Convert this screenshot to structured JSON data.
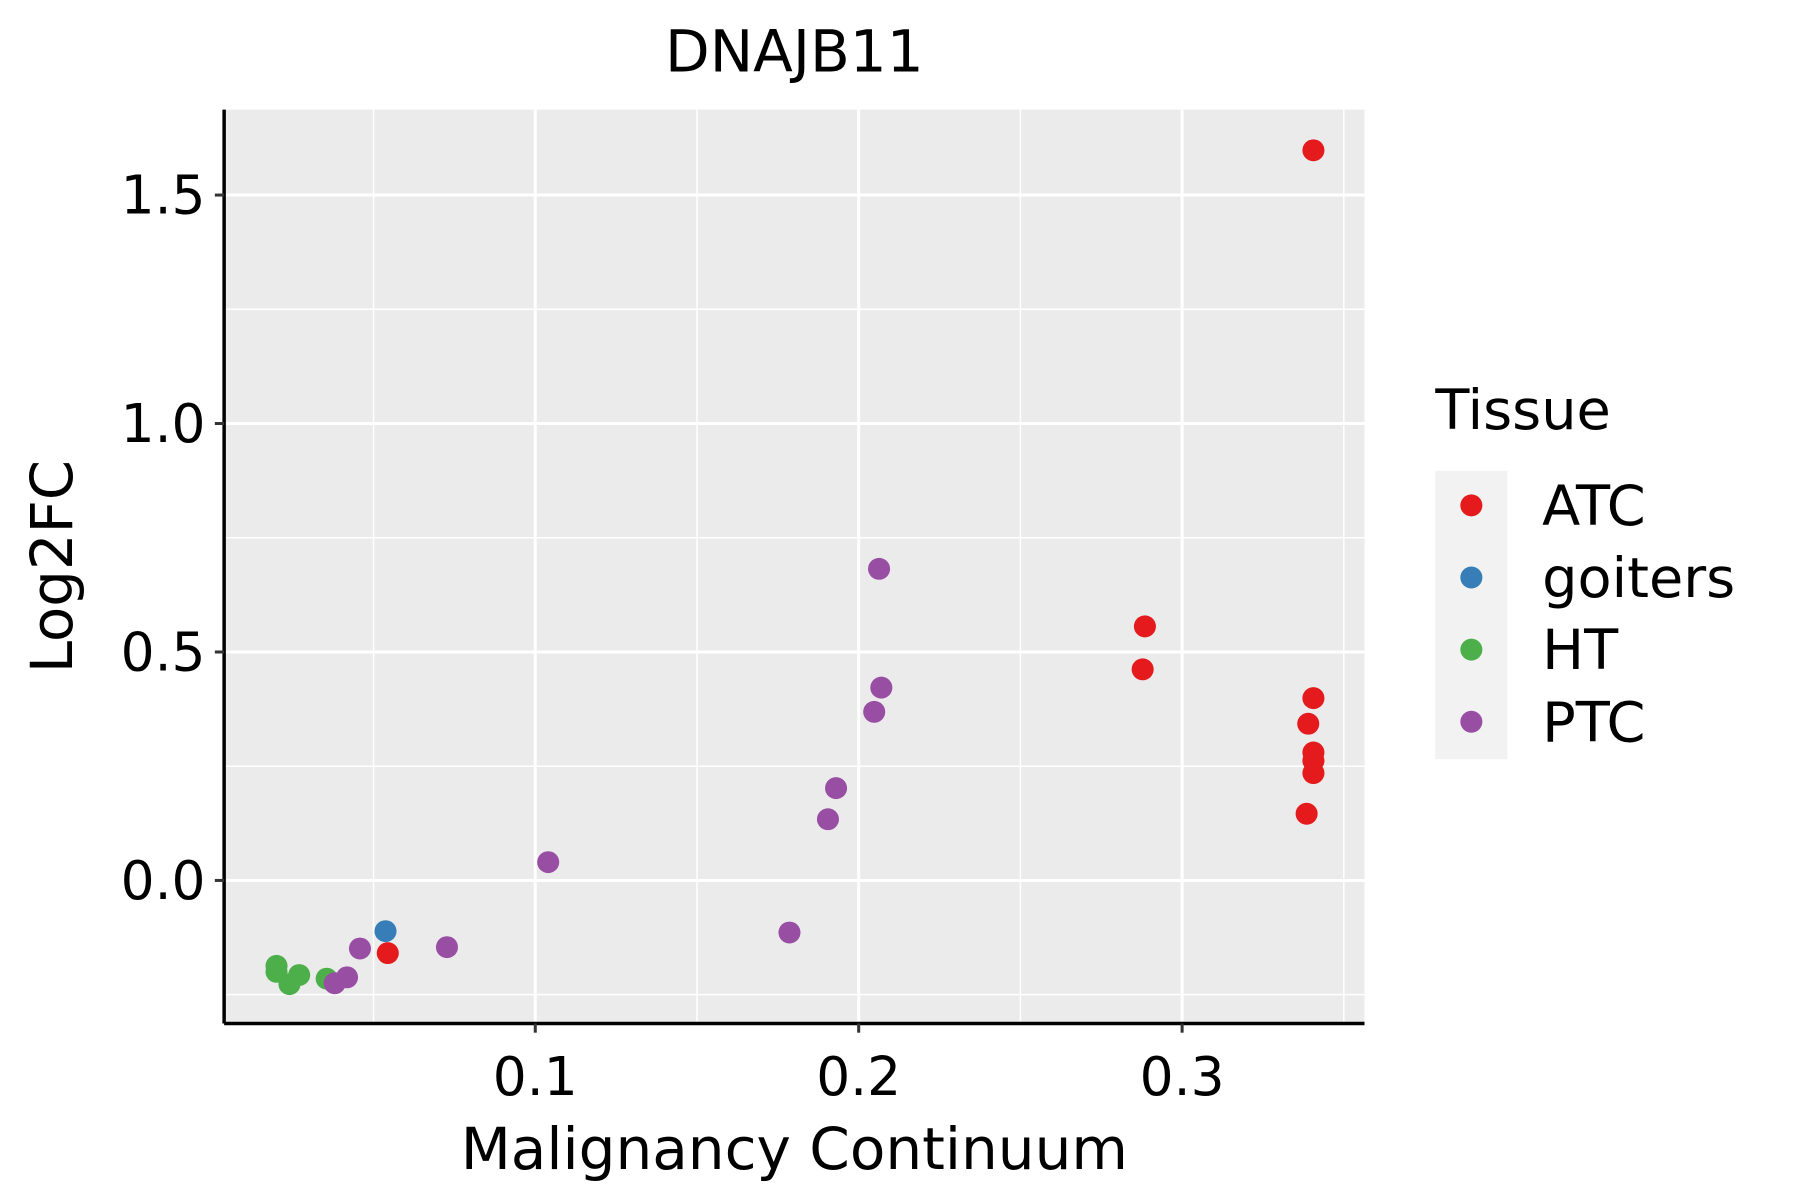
{
  "chart_data": {
    "type": "scatter",
    "title": "DNAJB11",
    "xlabel": "Malignancy Continuum",
    "ylabel": "Log2FC",
    "xlim": [
      0.0038,
      0.3564
    ],
    "ylim": [
      -0.313,
      1.687
    ],
    "xticks": [
      0.1,
      0.2,
      0.3
    ],
    "xtick_labels": [
      "0.1",
      "0.2",
      "0.3"
    ],
    "yticks": [
      0.0,
      0.5,
      1.0,
      1.5
    ],
    "ytick_labels": [
      "0.0",
      "0.5",
      "1.0",
      "1.5"
    ],
    "grid": true,
    "legend": {
      "title": "Tissue",
      "placement": "right"
    },
    "series": [
      {
        "name": "ATC",
        "color": "#E41A1C",
        "points": [
          [
            0.3406,
            1.598
          ],
          [
            0.2885,
            0.556
          ],
          [
            0.2878,
            0.462
          ],
          [
            0.3406,
            0.399
          ],
          [
            0.339,
            0.343
          ],
          [
            0.3406,
            0.28
          ],
          [
            0.3406,
            0.262
          ],
          [
            0.3406,
            0.235
          ],
          [
            0.3385,
            0.146
          ],
          [
            0.0544,
            -0.159
          ]
        ]
      },
      {
        "name": "goiters",
        "color": "#377EB8",
        "points": [
          [
            0.0537,
            -0.111
          ]
        ]
      },
      {
        "name": "HT",
        "color": "#4DAF4A",
        "points": [
          [
            0.02,
            -0.187
          ],
          [
            0.02,
            -0.2
          ],
          [
            0.024,
            -0.227
          ],
          [
            0.027,
            -0.207
          ],
          [
            0.0355,
            -0.215
          ]
        ]
      },
      {
        "name": "PTC",
        "color": "#984EA3",
        "points": [
          [
            0.2063,
            0.682
          ],
          [
            0.207,
            0.422
          ],
          [
            0.2048,
            0.369
          ],
          [
            0.193,
            0.202
          ],
          [
            0.1905,
            0.134
          ],
          [
            0.104,
            0.04
          ],
          [
            0.1786,
            -0.114
          ],
          [
            0.0727,
            -0.146
          ],
          [
            0.0458,
            -0.149
          ],
          [
            0.0418,
            -0.212
          ],
          [
            0.038,
            -0.225
          ]
        ]
      }
    ]
  }
}
